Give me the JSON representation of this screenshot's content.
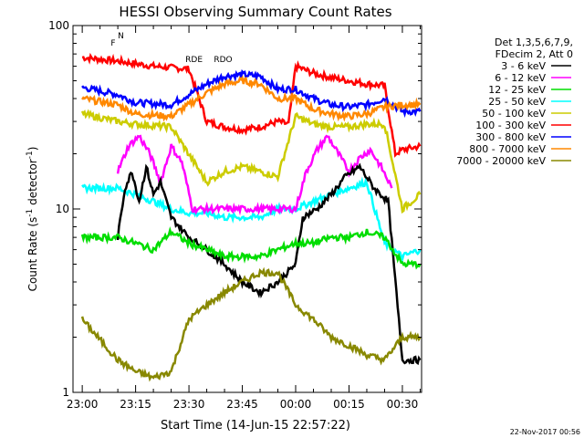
{
  "chart_data": {
    "type": "line",
    "title": "HESSI Observing Summary Count Rates",
    "xlabel": "Start Time (14-Jun-15 22:57:22)",
    "ylabel_main": "Count Rate (s",
    "ylabel_sup": "-1",
    "ylabel_tail": " detector",
    "ylabel_sup2": "-1",
    "ylabel_close": ")",
    "yscale": "log",
    "ylim": [
      1,
      100
    ],
    "y_ticks": [
      {
        "v": 1,
        "label": "1"
      },
      {
        "v": 10,
        "label": "10"
      },
      {
        "v": 100,
        "label": "100"
      }
    ],
    "x_ticks": [
      "23:00",
      "23:15",
      "23:30",
      "23:45",
      "00:00",
      "00:15",
      "00:30"
    ],
    "xlim_minutes": [
      -2.6,
      95.4
    ],
    "legend": {
      "placement": "right",
      "header": [
        "Det 1,3,5,6,7,9,",
        "FDecim 2, Att 0"
      ],
      "entries": [
        {
          "label": "3 - 6 keV",
          "color": "#000000"
        },
        {
          "label": "6 - 12 keV",
          "color": "#ff00ff"
        },
        {
          "label": "12 - 25 keV",
          "color": "#00dd00"
        },
        {
          "label": "25 - 50 keV",
          "color": "#00ffff"
        },
        {
          "label": "50 - 100 keV",
          "color": "#cccc00"
        },
        {
          "label": "100 - 300 keV",
          "color": "#ff0000"
        },
        {
          "label": "300 - 800 keV",
          "color": "#0000ff"
        },
        {
          "label": "800 - 7000 keV",
          "color": "#ff8800"
        },
        {
          "label": "7000 - 20000 keV",
          "color": "#888800"
        }
      ]
    },
    "series": [
      {
        "color": "#ff0000",
        "x": [
          0,
          10,
          20,
          30,
          35,
          40,
          45,
          50,
          55,
          58,
          60,
          65,
          70,
          75,
          80,
          85,
          88,
          90,
          95
        ],
        "y": [
          67,
          64,
          60,
          58,
          30,
          28,
          27,
          28,
          30,
          29,
          60,
          55,
          52,
          50,
          48,
          47,
          20,
          21,
          22
        ]
      },
      {
        "color": "#0000ff",
        "x": [
          0,
          10,
          15,
          25,
          35,
          40,
          45,
          50,
          55,
          60,
          65,
          70,
          75,
          80,
          85,
          90,
          95
        ],
        "y": [
          46,
          42,
          38,
          37,
          48,
          53,
          54,
          53,
          45,
          45,
          40,
          37,
          36,
          37,
          40,
          34,
          34
        ]
      },
      {
        "color": "#ff8800",
        "x": [
          0,
          10,
          15,
          25,
          35,
          40,
          45,
          50,
          55,
          60,
          65,
          70,
          75,
          80,
          85,
          90,
          95
        ],
        "y": [
          40,
          37,
          33,
          32,
          43,
          48,
          50,
          48,
          40,
          40,
          35,
          33,
          32,
          33,
          36,
          37,
          37
        ]
      },
      {
        "color": "#cccc00",
        "x": [
          0,
          10,
          15,
          25,
          35,
          40,
          45,
          50,
          55,
          60,
          65,
          70,
          75,
          80,
          85,
          90,
          95
        ],
        "y": [
          33,
          30,
          29,
          28,
          14,
          16,
          17,
          16,
          15,
          32,
          29,
          28,
          28,
          29,
          29,
          10,
          12
        ]
      },
      {
        "color": "#00ffff",
        "x": [
          0,
          10,
          15,
          20,
          25,
          30,
          35,
          40,
          45,
          50,
          55,
          60,
          65,
          70,
          75,
          80,
          85,
          90,
          95
        ],
        "y": [
          13,
          13,
          12,
          11,
          10,
          9.5,
          9.5,
          9,
          9,
          9,
          10,
          10,
          11,
          12,
          13,
          14,
          6.5,
          5.5,
          6
        ]
      },
      {
        "color": "#ff00ff",
        "x": [
          10,
          13,
          16,
          19,
          22,
          25,
          28,
          31,
          60,
          63,
          66,
          69,
          72,
          75,
          78,
          81,
          84,
          87
        ],
        "y": [
          16,
          22,
          25,
          20,
          14,
          22,
          18,
          10,
          10,
          16,
          21,
          25,
          20,
          16,
          19,
          21,
          17,
          13
        ]
      },
      {
        "color": "#000000",
        "x": [
          10,
          12,
          14,
          16,
          18,
          20,
          22,
          25,
          30,
          35,
          40,
          45,
          50,
          55,
          60,
          62,
          66,
          70,
          74,
          78,
          82,
          86,
          90,
          95
        ],
        "y": [
          7,
          13,
          16,
          11,
          17,
          12,
          14,
          9,
          7,
          6,
          5,
          4,
          3.5,
          4,
          5,
          9,
          10,
          12,
          15,
          17,
          13,
          11,
          1.5,
          1.5
        ]
      },
      {
        "color": "#00dd00",
        "x": [
          0,
          10,
          15,
          20,
          25,
          30,
          35,
          40,
          45,
          50,
          55,
          60,
          65,
          70,
          75,
          80,
          85,
          90,
          95
        ],
        "y": [
          7,
          7,
          6.5,
          6,
          7.5,
          6.5,
          6,
          5.5,
          5.5,
          5.5,
          6,
          6.5,
          6.5,
          7,
          7,
          7.5,
          7,
          5,
          5
        ]
      },
      {
        "color": "#888800",
        "x": [
          0,
          10,
          15,
          20,
          25,
          30,
          35,
          40,
          45,
          50,
          55,
          60,
          65,
          70,
          75,
          80,
          85,
          90,
          95
        ],
        "y": [
          2.5,
          1.5,
          1.3,
          1.2,
          1.3,
          2.5,
          3,
          3.5,
          4,
          4.5,
          4.5,
          3,
          2.5,
          2,
          1.8,
          1.6,
          1.5,
          2,
          2
        ]
      }
    ],
    "annotations": [
      {
        "text": "N",
        "x_min": 10,
        "color": "#00ffff"
      },
      {
        "text": "F",
        "x_min": 8,
        "color": "#ff0000"
      },
      {
        "text": "RDE",
        "x_min": 29,
        "color": "#007700"
      },
      {
        "text": "RDO",
        "x_min": 37,
        "color": "#007700"
      }
    ],
    "footer_timestamp": "22-Nov-2017 00:56"
  }
}
